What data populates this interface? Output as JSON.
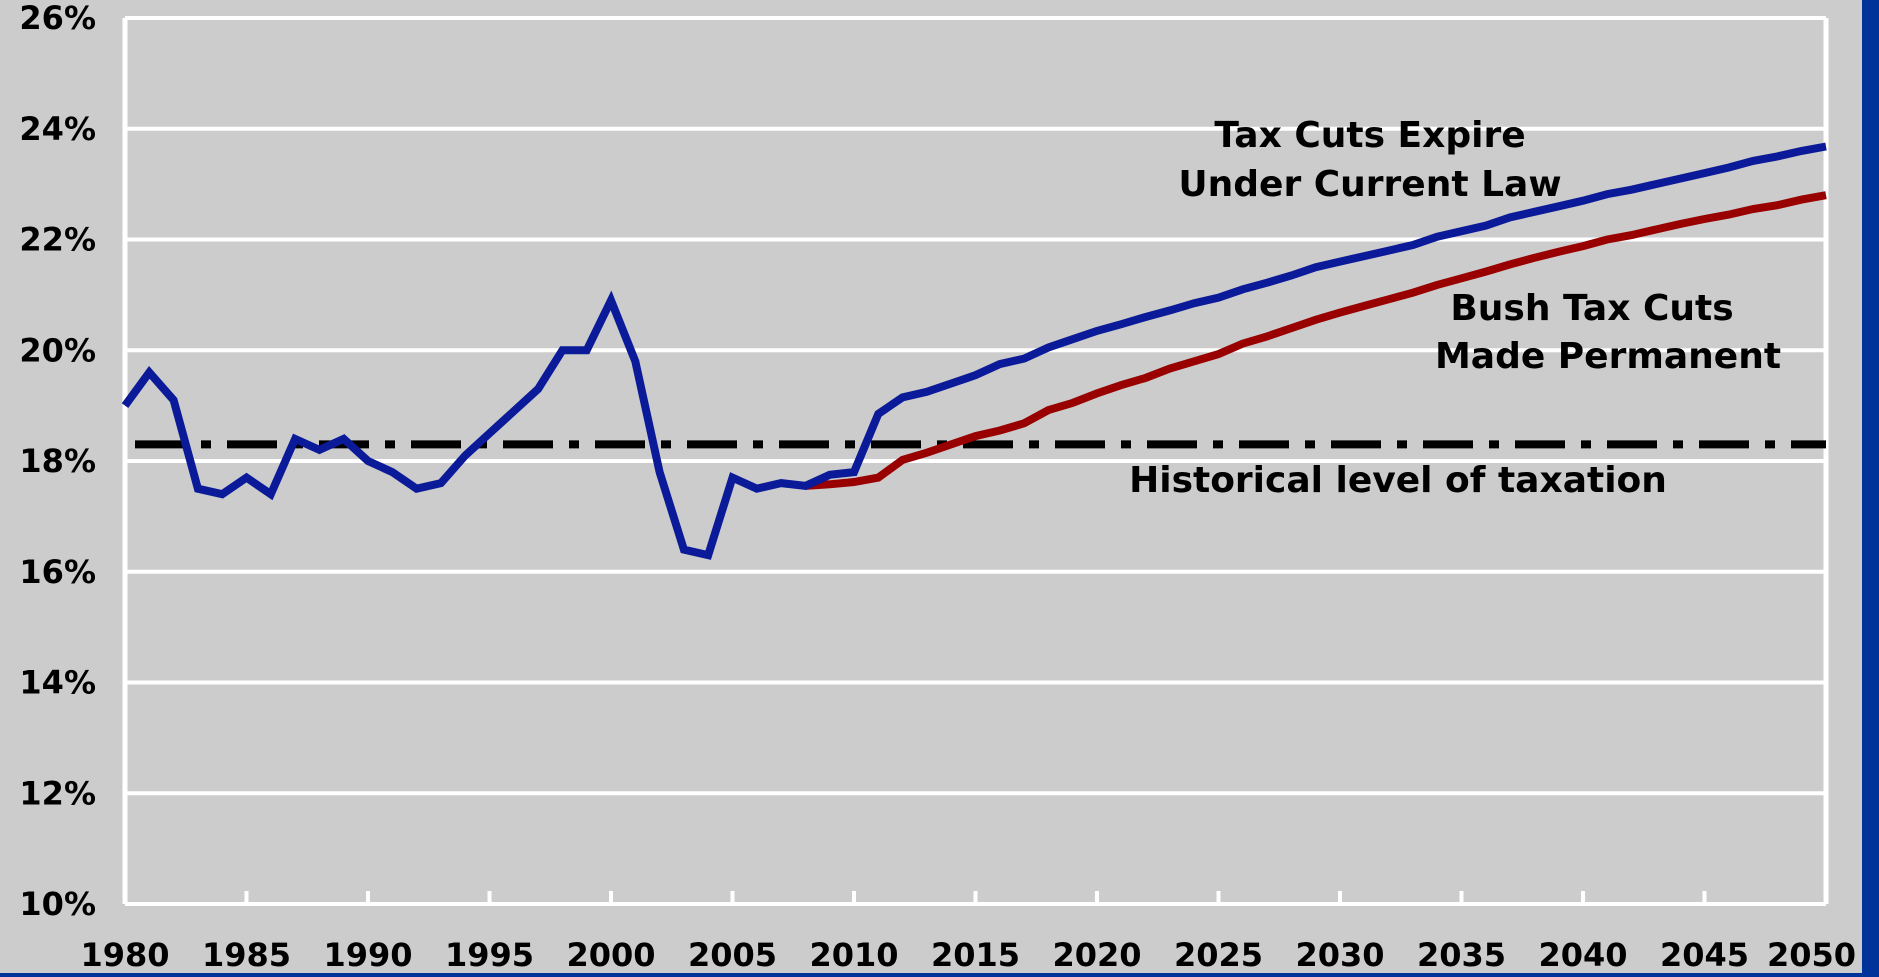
{
  "chart_data": {
    "type": "line",
    "title": "",
    "xlabel": "",
    "ylabel": "",
    "xlim": [
      1980,
      2050
    ],
    "ylim": [
      10,
      26
    ],
    "grid": true,
    "y_ticks": [
      "10%",
      "12%",
      "14%",
      "16%",
      "18%",
      "20%",
      "22%",
      "24%",
      "26%"
    ],
    "y_tick_values": [
      10,
      12,
      14,
      16,
      18,
      20,
      22,
      24,
      26
    ],
    "x_ticks": [
      "1980",
      "1985",
      "1990",
      "1995",
      "2000",
      "2005",
      "2010",
      "2015",
      "2020",
      "2025",
      "2030",
      "2035",
      "2040",
      "2045",
      "2050"
    ],
    "x_tick_values": [
      1980,
      1985,
      1990,
      1995,
      2000,
      2005,
      2010,
      2015,
      2020,
      2025,
      2030,
      2035,
      2040,
      2045,
      2050
    ],
    "colors": {
      "background": "#003399",
      "plot_area": "#cccccc",
      "grid": "#ffffff",
      "expire_series": "#0a1a99",
      "permanent_series": "#990000",
      "historical_line": "#000000"
    },
    "series": [
      {
        "key": "expire",
        "color": "#0a1a99",
        "x": [
          1980,
          1981,
          1982,
          1983,
          1984,
          1985,
          1986,
          1987,
          1988,
          1989,
          1990,
          1991,
          1992,
          1993,
          1994,
          1995,
          1996,
          1997,
          1998,
          1999,
          2000,
          2001,
          2002,
          2003,
          2004,
          2005,
          2006,
          2007,
          2008,
          2009,
          2010,
          2011,
          2012,
          2013,
          2014,
          2015,
          2016,
          2017,
          2018,
          2019,
          2020,
          2021,
          2022,
          2023,
          2024,
          2025,
          2026,
          2027,
          2028,
          2029,
          2030,
          2031,
          2032,
          2033,
          2034,
          2035,
          2036,
          2037,
          2038,
          2039,
          2040,
          2041,
          2042,
          2043,
          2044,
          2045,
          2046,
          2047,
          2048,
          2049,
          2050
        ],
        "values": [
          19.0,
          19.6,
          19.1,
          17.5,
          17.4,
          17.7,
          17.4,
          18.4,
          18.2,
          18.4,
          18.0,
          17.8,
          17.5,
          17.6,
          18.1,
          18.5,
          18.9,
          19.3,
          20.0,
          20.0,
          20.9,
          19.8,
          17.8,
          16.4,
          16.3,
          17.7,
          17.5,
          17.6,
          17.55,
          17.75,
          17.8,
          18.85,
          19.15,
          19.25,
          19.4,
          19.55,
          19.75,
          19.85,
          20.05,
          20.2,
          20.35,
          20.47,
          20.6,
          20.72,
          20.85,
          20.95,
          21.1,
          21.22,
          21.35,
          21.5,
          21.6,
          21.7,
          21.8,
          21.9,
          22.05,
          22.15,
          22.25,
          22.4,
          22.5,
          22.6,
          22.7,
          22.82,
          22.9,
          23.0,
          23.1,
          23.2,
          23.3,
          23.42,
          23.5,
          23.6,
          23.68
        ]
      },
      {
        "key": "permanent",
        "color": "#990000",
        "x": [
          2008,
          2009,
          2010,
          2011,
          2012,
          2013,
          2014,
          2015,
          2016,
          2017,
          2018,
          2019,
          2020,
          2021,
          2022,
          2023,
          2024,
          2025,
          2026,
          2027,
          2028,
          2029,
          2030,
          2031,
          2032,
          2033,
          2034,
          2035,
          2036,
          2037,
          2038,
          2039,
          2040,
          2041,
          2042,
          2043,
          2044,
          2045,
          2046,
          2047,
          2048,
          2049,
          2050
        ],
        "values": [
          17.55,
          17.58,
          17.62,
          17.7,
          18.02,
          18.15,
          18.3,
          18.45,
          18.55,
          18.68,
          18.92,
          19.05,
          19.22,
          19.37,
          19.5,
          19.67,
          19.8,
          19.93,
          20.12,
          20.25,
          20.4,
          20.55,
          20.68,
          20.8,
          20.92,
          21.04,
          21.18,
          21.3,
          21.42,
          21.55,
          21.67,
          21.78,
          21.88,
          22.0,
          22.08,
          22.18,
          22.28,
          22.37,
          22.45,
          22.55,
          22.62,
          22.72,
          22.8
        ]
      }
    ],
    "reference_line": {
      "key": "historical",
      "y": 18.3,
      "style": "dash-dot"
    },
    "annotations": [
      {
        "key": "expire_label",
        "lines": [
          "Tax Cuts Expire",
          "Under Current Law"
        ]
      },
      {
        "key": "permanent_label",
        "lines": [
          "Bush Tax Cuts",
          "Made Permanent"
        ]
      },
      {
        "key": "historical_label",
        "lines": [
          "Historical level of taxation"
        ]
      }
    ]
  }
}
